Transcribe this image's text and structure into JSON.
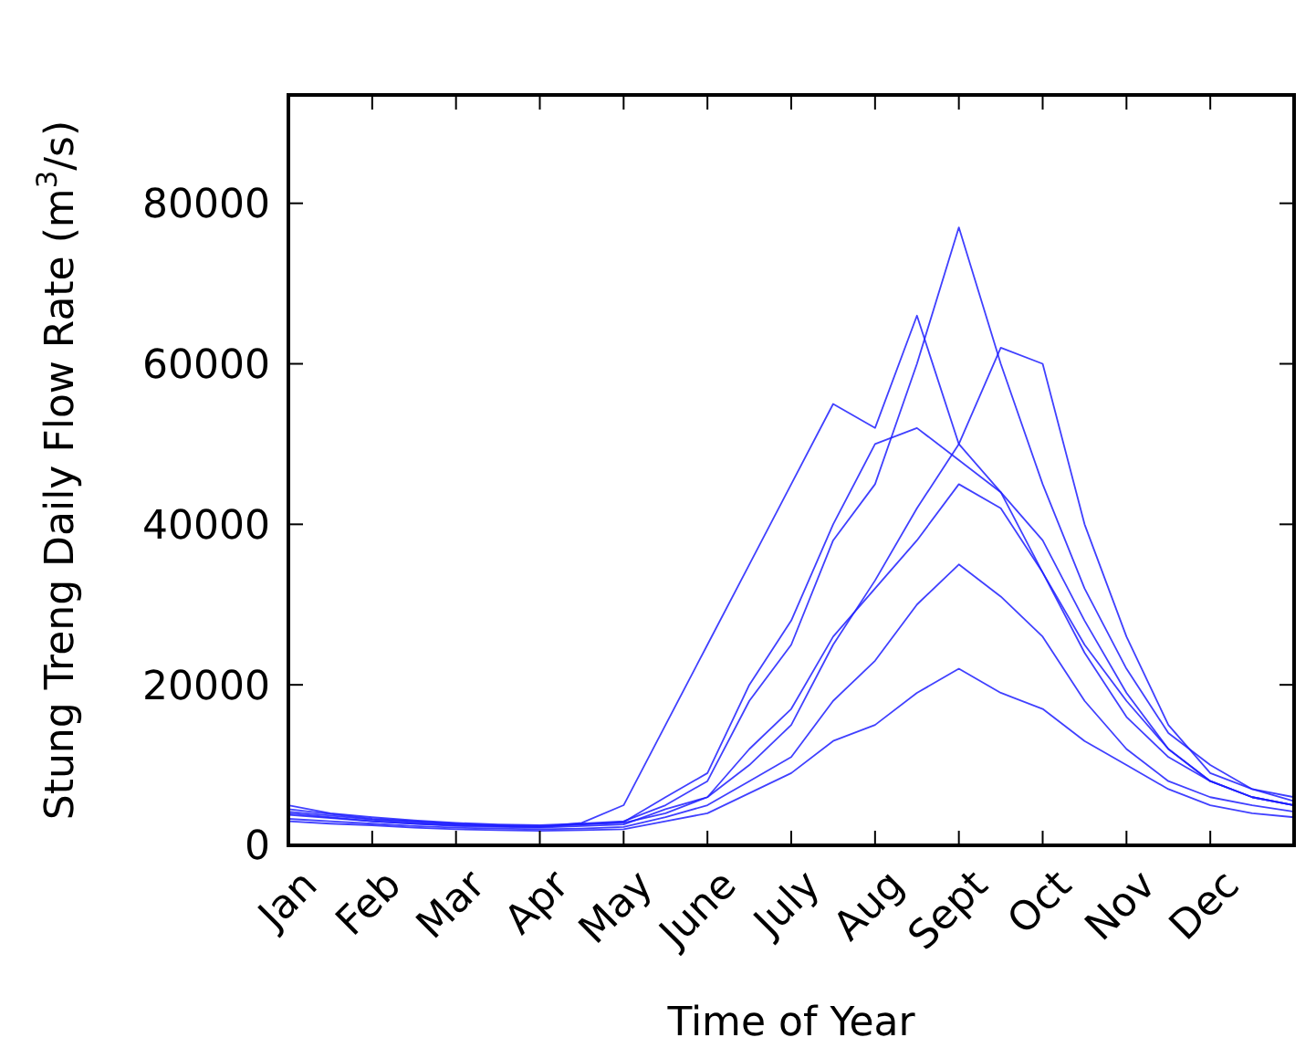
{
  "chart_data": {
    "type": "line",
    "xlabel": "Time of Year",
    "ylabel": "Stung Treng Daily Flow Rate (m$^{3}$/s)",
    "categories": [
      "Jan",
      null,
      "Feb",
      null,
      "Mar",
      null,
      "Apr",
      null,
      "May",
      null,
      "June",
      null,
      "July",
      null,
      "Aug",
      null,
      "Sept",
      null,
      "Oct",
      null,
      "Nov",
      null,
      "Dec",
      null,
      null
    ],
    "ylim": [
      0,
      93500
    ],
    "yticks": [
      0,
      20000,
      40000,
      60000,
      80000
    ],
    "marker": "none",
    "line_style": "solid",
    "series": [
      {
        "color": "#1f1fff",
        "values": [
          5000,
          4000,
          3500,
          3100,
          2800,
          2600,
          2500,
          2700,
          3000,
          5000,
          8000,
          18000,
          25000,
          38000,
          45000,
          60000,
          77000,
          60000,
          45000,
          32000,
          22000,
          14000,
          10000,
          7000,
          6000
        ]
      },
      {
        "color": "#1f1fff",
        "values": [
          4000,
          3500,
          3000,
          2700,
          2500,
          2400,
          2300,
          2800,
          5000,
          15000,
          25000,
          35000,
          45000,
          55000,
          52000,
          66000,
          50000,
          44000,
          34000,
          25000,
          18000,
          12000,
          8000,
          6000,
          5000
        ]
      },
      {
        "color": "#1f1fff",
        "values": [
          3000,
          2700,
          2500,
          2200,
          2000,
          1900,
          1800,
          1900,
          2000,
          3000,
          4000,
          6500,
          9000,
          13000,
          15000,
          19000,
          22000,
          19000,
          17000,
          13000,
          10000,
          7000,
          5000,
          4000,
          3500
        ]
      },
      {
        "color": "#1f1fff",
        "values": [
          3800,
          3400,
          3000,
          2700,
          2400,
          2300,
          2200,
          2400,
          2600,
          4500,
          6000,
          12000,
          17000,
          26000,
          32000,
          38000,
          45000,
          42000,
          34000,
          24000,
          16000,
          11000,
          8000,
          6000,
          5000
        ]
      },
      {
        "color": "#1f1fff",
        "values": [
          4500,
          3900,
          3300,
          3000,
          2700,
          2500,
          2400,
          2600,
          2800,
          4000,
          6000,
          10000,
          15000,
          25000,
          33000,
          42000,
          50000,
          62000,
          60000,
          40000,
          26000,
          15000,
          9000,
          7000,
          5500
        ]
      },
      {
        "color": "#1f1fff",
        "values": [
          4200,
          3700,
          3200,
          2900,
          2600,
          2400,
          2300,
          2600,
          2900,
          6000,
          9000,
          20000,
          28000,
          40000,
          50000,
          52000,
          48000,
          44000,
          38000,
          28000,
          19000,
          12000,
          8000,
          6000,
          5000
        ]
      },
      {
        "color": "#1f1fff",
        "values": [
          3300,
          3000,
          2700,
          2400,
          2200,
          2100,
          2000,
          2100,
          2300,
          3500,
          5000,
          8000,
          11000,
          18000,
          23000,
          30000,
          35000,
          31000,
          26000,
          18000,
          12000,
          8000,
          6000,
          5000,
          4200
        ]
      }
    ]
  }
}
